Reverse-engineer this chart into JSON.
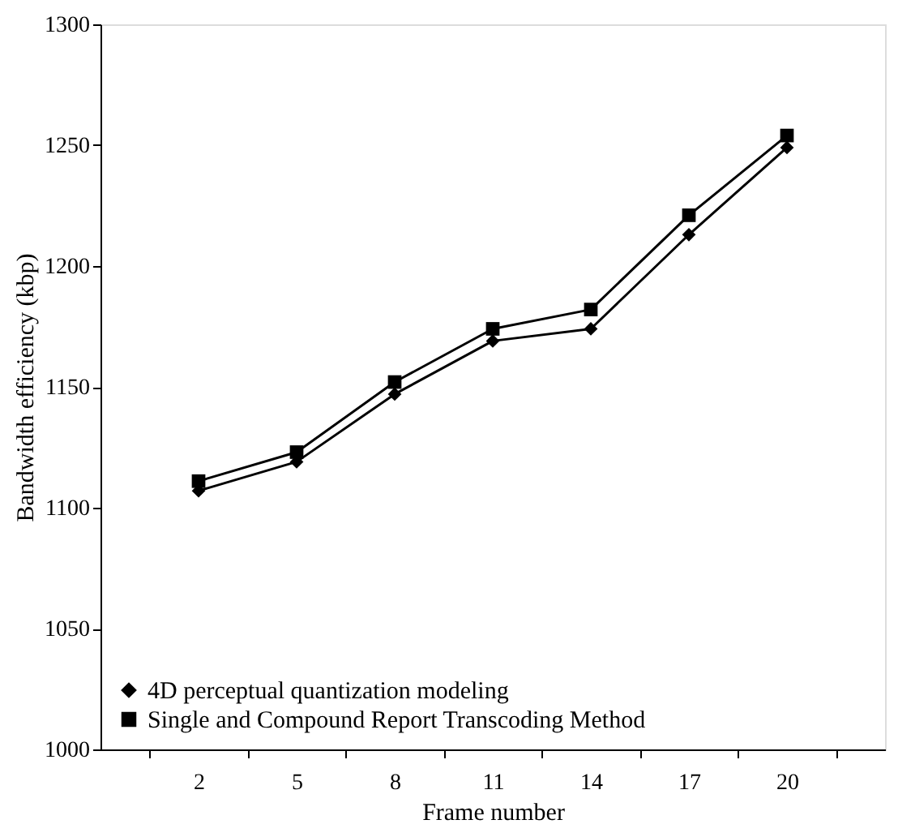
{
  "chart_data": {
    "type": "line",
    "xlabel": "Frame number",
    "ylabel": "Bandwidth efficiency (kbp)",
    "categories": [
      "2",
      "5",
      "8",
      "11",
      "14",
      "17",
      "20"
    ],
    "series": [
      {
        "name": "4D perceptual quantization modeling",
        "color": "#000000",
        "marker": "diamond",
        "values": [
          1107,
          1119,
          1147,
          1169,
          1174,
          1213,
          1249
        ]
      },
      {
        "name": "Single and Compound Report Transcoding Method",
        "color": "#000000",
        "marker": "square",
        "values": [
          1111,
          1123,
          1152,
          1174,
          1182,
          1221,
          1254
        ]
      }
    ],
    "ylim": [
      1000,
      1300
    ],
    "yticks": [
      1000,
      1050,
      1100,
      1150,
      1200,
      1250,
      1300
    ],
    "grid": false,
    "legend": "bottom left",
    "line_style": "solid"
  }
}
